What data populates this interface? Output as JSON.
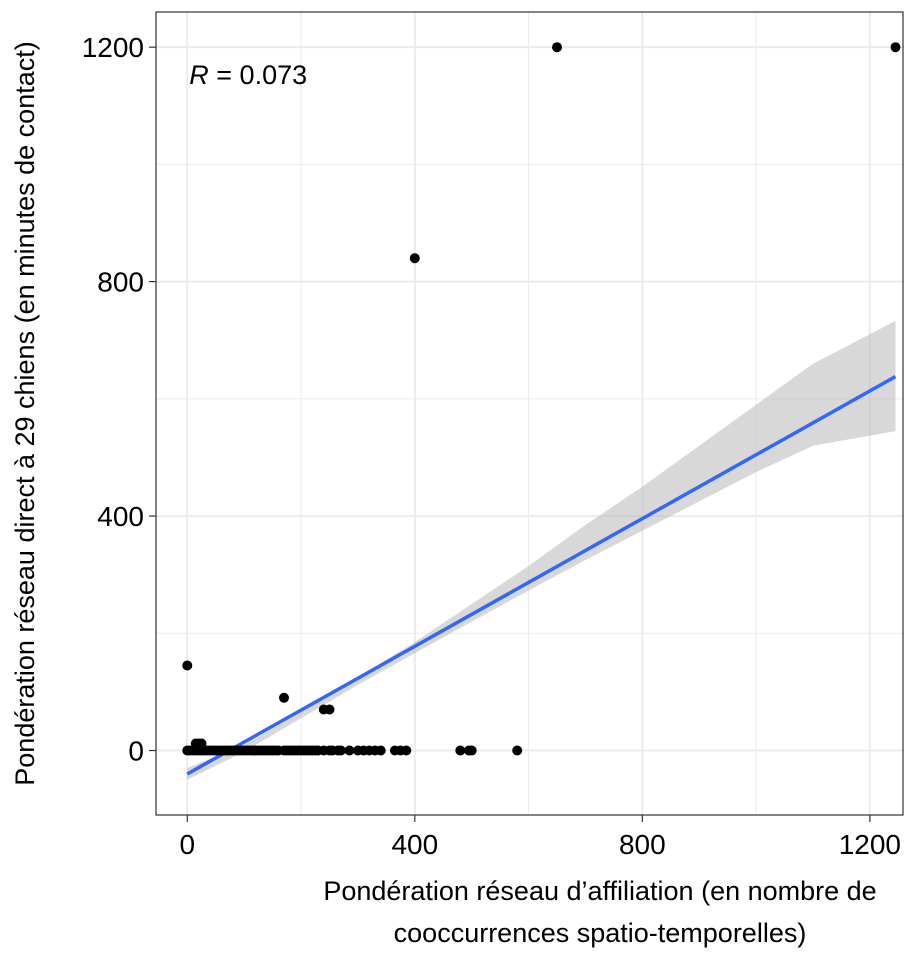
{
  "chart_data": {
    "type": "scatter",
    "xlabel_lines": [
      "Pondération réseau d’affiliation (en nombre de",
      "cooccurrences spatio-temporelles)"
    ],
    "ylabel": "Pondération réseau direct à 29 chiens (en minutes de contact)",
    "annotation": {
      "italic": "R",
      "rest": " = 0.073"
    },
    "xlim": [
      -55,
      1260
    ],
    "ylim": [
      -110,
      1260
    ],
    "x_ticks": [
      0,
      400,
      800,
      1200
    ],
    "y_ticks": [
      0,
      400,
      800,
      1200
    ],
    "grid": true,
    "colors": {
      "points": "#000000",
      "fit_line": "#3366FF",
      "ribbon": "#BEBEBE",
      "grid": "#EBEBEB"
    },
    "points": [
      {
        "x": 650,
        "y": 1200
      },
      {
        "x": 1245,
        "y": 1200
      },
      {
        "x": 400,
        "y": 840
      },
      {
        "x": 0,
        "y": 145
      },
      {
        "x": 170,
        "y": 90
      },
      {
        "x": 240,
        "y": 70
      },
      {
        "x": 250,
        "y": 70
      },
      {
        "x": 15,
        "y": 12
      },
      {
        "x": 20,
        "y": 12
      },
      {
        "x": 25,
        "y": 12
      },
      {
        "x": 0,
        "y": 0
      },
      {
        "x": 5,
        "y": 0
      },
      {
        "x": 10,
        "y": 0
      },
      {
        "x": 15,
        "y": 0
      },
      {
        "x": 20,
        "y": 0
      },
      {
        "x": 25,
        "y": 0
      },
      {
        "x": 30,
        "y": 0
      },
      {
        "x": 35,
        "y": 0
      },
      {
        "x": 40,
        "y": 0
      },
      {
        "x": 45,
        "y": 0
      },
      {
        "x": 50,
        "y": 0
      },
      {
        "x": 55,
        "y": 0
      },
      {
        "x": 60,
        "y": 0
      },
      {
        "x": 65,
        "y": 0
      },
      {
        "x": 70,
        "y": 0
      },
      {
        "x": 75,
        "y": 0
      },
      {
        "x": 80,
        "y": 0
      },
      {
        "x": 85,
        "y": 0
      },
      {
        "x": 90,
        "y": 0
      },
      {
        "x": 95,
        "y": 0
      },
      {
        "x": 100,
        "y": 0
      },
      {
        "x": 105,
        "y": 0
      },
      {
        "x": 110,
        "y": 0
      },
      {
        "x": 115,
        "y": 0
      },
      {
        "x": 120,
        "y": 0
      },
      {
        "x": 125,
        "y": 0
      },
      {
        "x": 130,
        "y": 0
      },
      {
        "x": 135,
        "y": 0
      },
      {
        "x": 140,
        "y": 0
      },
      {
        "x": 145,
        "y": 0
      },
      {
        "x": 150,
        "y": 0
      },
      {
        "x": 155,
        "y": 0
      },
      {
        "x": 160,
        "y": 0
      },
      {
        "x": 170,
        "y": 0
      },
      {
        "x": 175,
        "y": 0
      },
      {
        "x": 180,
        "y": 0
      },
      {
        "x": 185,
        "y": 0
      },
      {
        "x": 190,
        "y": 0
      },
      {
        "x": 195,
        "y": 0
      },
      {
        "x": 200,
        "y": 0
      },
      {
        "x": 205,
        "y": 0
      },
      {
        "x": 210,
        "y": 0
      },
      {
        "x": 215,
        "y": 0
      },
      {
        "x": 220,
        "y": 0
      },
      {
        "x": 225,
        "y": 0
      },
      {
        "x": 230,
        "y": 0
      },
      {
        "x": 240,
        "y": 0
      },
      {
        "x": 250,
        "y": 0
      },
      {
        "x": 255,
        "y": 0
      },
      {
        "x": 265,
        "y": 0
      },
      {
        "x": 270,
        "y": 0
      },
      {
        "x": 285,
        "y": 0
      },
      {
        "x": 300,
        "y": 0
      },
      {
        "x": 310,
        "y": 0
      },
      {
        "x": 320,
        "y": 0
      },
      {
        "x": 330,
        "y": 0
      },
      {
        "x": 340,
        "y": 0
      },
      {
        "x": 365,
        "y": 0
      },
      {
        "x": 375,
        "y": 0
      },
      {
        "x": 385,
        "y": 0
      },
      {
        "x": 480,
        "y": 0
      },
      {
        "x": 495,
        "y": 0
      },
      {
        "x": 500,
        "y": 0
      },
      {
        "x": 580,
        "y": 0
      }
    ],
    "fit": {
      "x": [
        0,
        1245
      ],
      "y": [
        -40,
        638
      ]
    },
    "ribbon": {
      "x": [
        0,
        100,
        200,
        300,
        400,
        500,
        600,
        700,
        800,
        900,
        1000,
        1100,
        1245
      ],
      "lower": [
        -50,
        -2,
        55,
        112,
        166,
        220,
        273,
        325,
        375,
        425,
        475,
        520,
        545
      ],
      "upper": [
        -30,
        10,
        65,
        125,
        185,
        250,
        315,
        385,
        450,
        520,
        590,
        660,
        733
      ]
    }
  }
}
